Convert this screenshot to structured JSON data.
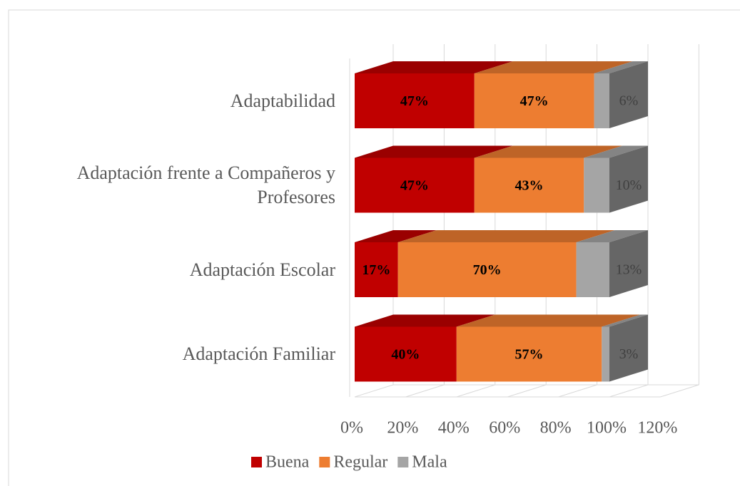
{
  "chart_data": {
    "type": "bar3d-stacked-horizontal",
    "categories": [
      "Adaptabilidad",
      "Adaptación frente a Compañeros y Profesores",
      "Adaptación Escolar",
      "Adaptación Familiar"
    ],
    "series": [
      {
        "name": "Buena",
        "color": "#c00000",
        "values": [
          47,
          47,
          17,
          40
        ],
        "value_labels": [
          "47%",
          "47%",
          "17%",
          "40%"
        ]
      },
      {
        "name": "Regular",
        "color": "#ed7d31",
        "values": [
          47,
          43,
          70,
          57
        ],
        "value_labels": [
          "47%",
          "43%",
          "70%",
          "57%"
        ]
      },
      {
        "name": "Mala",
        "color": "#a5a5a5",
        "values": [
          6,
          10,
          13,
          3
        ],
        "value_labels": [
          "6%",
          "10%",
          "13%",
          "3%"
        ]
      }
    ],
    "xlim": [
      0,
      120
    ],
    "xticks": [
      {
        "value": 0,
        "label": "0%"
      },
      {
        "value": 20,
        "label": "20%"
      },
      {
        "value": 40,
        "label": "40%"
      },
      {
        "value": 60,
        "label": "60%"
      },
      {
        "value": 80,
        "label": "80%"
      },
      {
        "value": 100,
        "label": "100%"
      },
      {
        "value": 120,
        "label": "120%"
      }
    ],
    "grid": true,
    "legend": "bottom"
  }
}
